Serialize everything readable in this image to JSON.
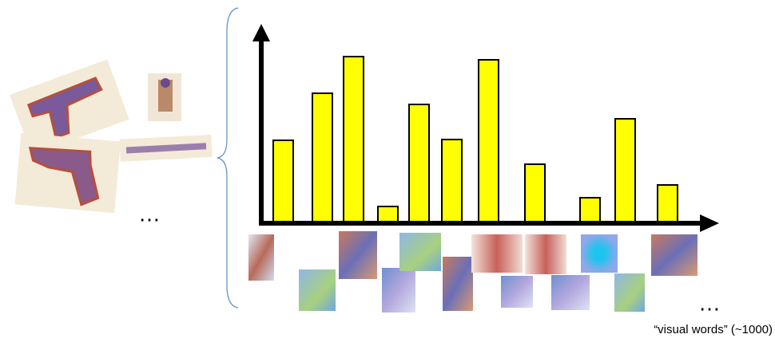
{
  "chart_data": {
    "type": "bar",
    "categories": [
      null,
      null,
      null,
      null,
      null,
      null,
      null,
      null,
      null,
      null,
      null
    ],
    "values": [
      102,
      161,
      207,
      19,
      147,
      103,
      203,
      72,
      30,
      129,
      46
    ],
    "color": "#ffff00",
    "ylim": [
      0,
      250
    ],
    "images_ellipsis": "…",
    "words_ellipsis": "…",
    "caption": "“visual words” (~1000)"
  }
}
